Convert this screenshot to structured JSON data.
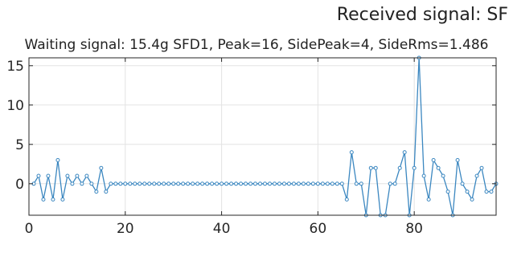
{
  "figure": {
    "suptitle": "Received signal: SF"
  },
  "chart_data": {
    "type": "line",
    "title": "Waiting signal: 15.4g SFD1, Peak=16, SidePeak=4, SideRms=1.486",
    "xlabel": "",
    "ylabel": "",
    "xlim": [
      0,
      97
    ],
    "ylim": [
      -4,
      16
    ],
    "grid": true,
    "legend": "none",
    "marker": "circle",
    "line_color": "#3b87c0",
    "x_ticks": [
      0,
      20,
      40,
      60,
      80
    ],
    "y_ticks": [
      0,
      5,
      10,
      15
    ],
    "series": [
      {
        "x": [
          1,
          2,
          3,
          4,
          5,
          6,
          7,
          8,
          9,
          10,
          11,
          12,
          13,
          14,
          15,
          16,
          17,
          18,
          19,
          20,
          21,
          22,
          23,
          24,
          25,
          26,
          27,
          28,
          29,
          30,
          31,
          32,
          33,
          34,
          35,
          36,
          37,
          38,
          39,
          40,
          41,
          42,
          43,
          44,
          45,
          46,
          47,
          48,
          49,
          50,
          51,
          52,
          53,
          54,
          55,
          56,
          57,
          58,
          59,
          60,
          61,
          62,
          63,
          64,
          65,
          66,
          67,
          68,
          69,
          70,
          71,
          72,
          73,
          74,
          75,
          76,
          77,
          78,
          79,
          80,
          81,
          82,
          83,
          84,
          85,
          86,
          87,
          88,
          89,
          90,
          91,
          92,
          93,
          94,
          95,
          96,
          97
        ],
        "y": [
          0,
          1,
          -2,
          1,
          -2,
          3,
          -2,
          1,
          0,
          1,
          0,
          1,
          0,
          -1,
          2,
          -1,
          0,
          0,
          0,
          0,
          0,
          0,
          0,
          0,
          0,
          0,
          0,
          0,
          0,
          0,
          0,
          0,
          0,
          0,
          0,
          0,
          0,
          0,
          0,
          0,
          0,
          0,
          0,
          0,
          0,
          0,
          0,
          0,
          0,
          0,
          0,
          0,
          0,
          0,
          0,
          0,
          0,
          0,
          0,
          0,
          0,
          0,
          0,
          0,
          0,
          -2,
          4,
          0,
          0,
          -4,
          2,
          2,
          -4,
          -4,
          0,
          0,
          2,
          4,
          -4,
          2,
          16,
          1,
          -2,
          3,
          2,
          1,
          -1,
          -4,
          3,
          0,
          -1,
          -2,
          1,
          2,
          -1,
          -1,
          0
        ]
      }
    ]
  }
}
